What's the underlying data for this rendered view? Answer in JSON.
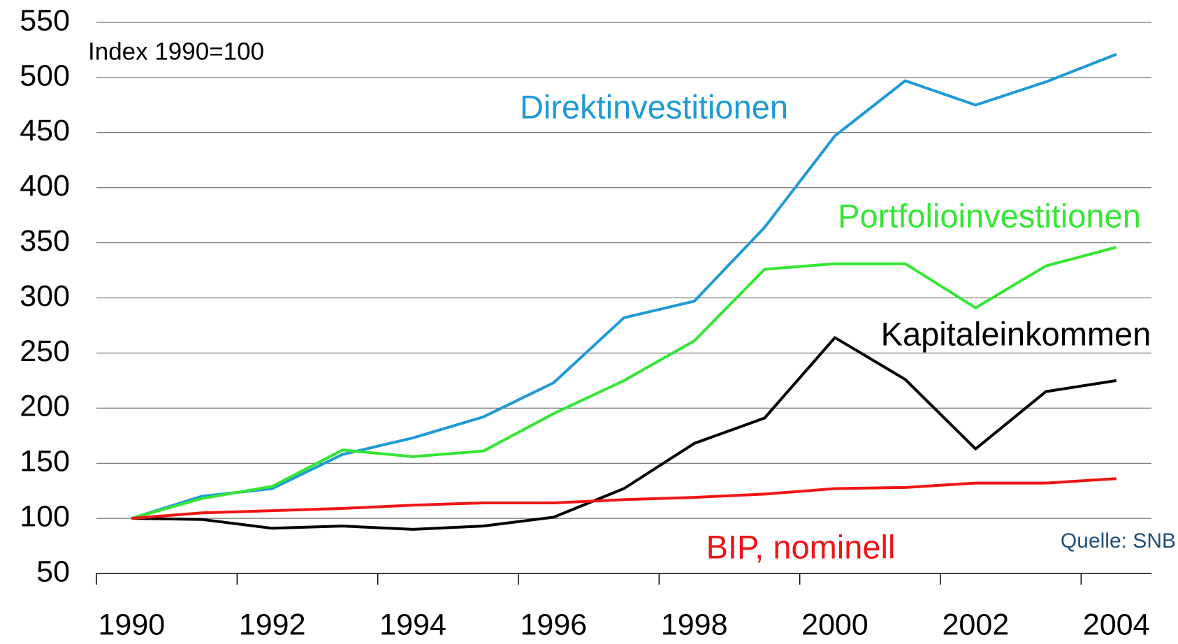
{
  "chart_data": {
    "type": "line",
    "subtitle": "Index 1990=100",
    "source": "Quelle: SNB",
    "categories": [
      "1990",
      null,
      "1992",
      null,
      "1994",
      null,
      "1996",
      null,
      "1998",
      null,
      "2000",
      null,
      "2002",
      null,
      "2004"
    ],
    "ylim": [
      50,
      550
    ],
    "yticks": [
      50,
      100,
      150,
      200,
      250,
      300,
      350,
      400,
      450,
      500,
      550
    ],
    "grid": true,
    "series": [
      {
        "name": "Direktinvestitionen",
        "color": "#1e9ad6",
        "values": [
          100,
          120,
          127,
          158,
          173,
          192,
          223,
          282,
          297,
          364,
          447,
          497,
          475,
          496,
          521
        ]
      },
      {
        "name": "Portfolioinvestitionen",
        "color": "#33e633",
        "values": [
          100,
          118,
          129,
          162,
          156,
          161,
          195,
          225,
          261,
          326,
          331,
          331,
          291,
          329,
          346
        ]
      },
      {
        "name": "Kapitaleinkommen",
        "color": "#000000",
        "values": [
          100,
          99,
          91,
          93,
          90,
          93,
          101,
          127,
          168,
          191,
          264,
          226,
          163,
          215,
          225
        ]
      },
      {
        "name": "BIP, nominell",
        "color": "#f01414",
        "values": [
          100,
          105,
          107,
          109,
          112,
          114,
          114,
          117,
          119,
          122,
          127,
          128,
          132,
          132,
          136
        ]
      }
    ]
  }
}
